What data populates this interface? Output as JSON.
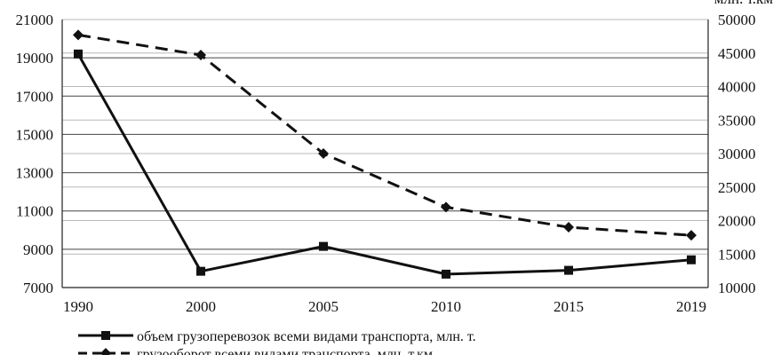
{
  "chart_data": {
    "type": "line",
    "title": "",
    "x": [
      "1990",
      "2000",
      "2005",
      "2010",
      "2015",
      "2019"
    ],
    "y_left": {
      "min": 7000,
      "max": 21000,
      "step": 2000,
      "ticks": [
        "7000",
        "9000",
        "11000",
        "13000",
        "15000",
        "17000",
        "19000",
        "21000"
      ]
    },
    "y_right": {
      "min": 10000,
      "max": 50000,
      "step": 5000,
      "ticks": [
        "10000",
        "15000",
        "20000",
        "25000",
        "30000",
        "35000",
        "40000",
        "45000",
        "50000"
      ],
      "unit_label": "млн. т.км"
    },
    "grid": true,
    "legend_position": "bottom",
    "series": [
      {
        "name": "объем грузоперевозок всеми видами транспорта, млн. т.",
        "axis": "left",
        "style": "solid",
        "marker": "square",
        "values": [
          19200,
          7850,
          9150,
          7700,
          7900,
          8450
        ]
      },
      {
        "name": "грузооборот всеми видами транспорта, млн. т.км",
        "axis": "right",
        "style": "dashed",
        "marker": "diamond",
        "values": [
          47700,
          44700,
          30000,
          22000,
          19000,
          17800
        ]
      }
    ],
    "colors": {
      "line": "#111111",
      "grid": "#b8b8b8",
      "background": "#ffffff"
    }
  }
}
